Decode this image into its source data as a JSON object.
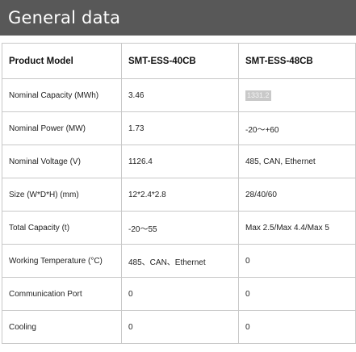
{
  "header": {
    "title": "General data"
  },
  "table": {
    "headers": [
      "Product Model",
      "SMT-ESS-40CB",
      "SMT-ESS-48CB"
    ],
    "rows": [
      {
        "label": "Nominal Capacity (MWh)",
        "col1": "3.46",
        "col2": "1331.2"
      },
      {
        "label": "Nominal Power (MW)",
        "col1": "1.73",
        "col2": "-20～+60"
      },
      {
        "label": "Nominal Voltage (V)",
        "col1": "1126.4",
        "col2": "485, CAN, Ethernet"
      },
      {
        "label": "Size (W*D*H) (mm)",
        "col1": "12*2.4*2.8",
        "col2": "28/40/60"
      },
      {
        "label": "Total Capacity (t)",
        "col1": "-20～55",
        "col2": "Max 2.5/Max 4.4/Max 5"
      },
      {
        "label": "Working Temperature (°C)",
        "col1": "485、CAN、Ethernet",
        "col2": "0"
      },
      {
        "label": "Communication Port",
        "col1": "0",
        "col2": "0"
      },
      {
        "label": "Cooling",
        "col1": "0",
        "col2": "0"
      }
    ]
  },
  "colors": {
    "header_bg": "#585858",
    "border": "#c8c8c8",
    "highlight_bg": "#c9c9c9"
  }
}
